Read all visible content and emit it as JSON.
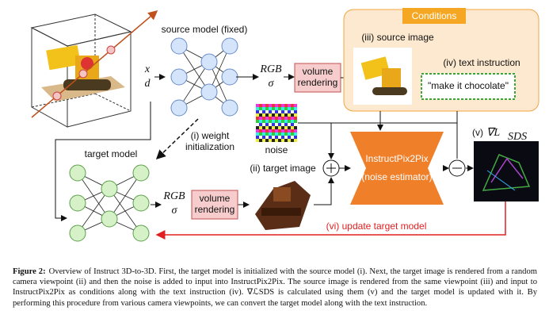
{
  "figure": {
    "source_model": "source model (fixed)",
    "input_x": "x",
    "input_d": "d",
    "rgb_top": "RGB",
    "sigma_top": "σ",
    "volume_rendering_top": [
      "volume",
      "rendering"
    ],
    "conditions": "Conditions",
    "source_image": "(iii) source image",
    "text_instruction": "(iv) text instruction",
    "instruction_text": "\"make it chocolate\"",
    "noise": "noise",
    "weight_init": [
      "(i) weight",
      "initialization"
    ],
    "target_model": "target model",
    "target_image": "(ii) target image",
    "pix2pix": "InstructPix2Pix",
    "pix2pix_sub": "(noise estimator)",
    "sds_prefix": "(v)",
    "sds_symbol": "∇L",
    "sds_sub": "SDS",
    "rgb_bottom": "RGB",
    "sigma_bottom": "σ",
    "volume_rendering_bottom": [
      "volume",
      "rendering"
    ],
    "update": "(vi) update target model"
  },
  "caption": {
    "label": "Figure 2:",
    "text": "Overview of Instruct 3D-to-3D. First, the target model is initialized with the source model (i). Next, the target image is rendered from a random camera viewpoint (ii) and then the noise is added to input into InstructPix2Pix. The source image is rendered from the same viewpoint (iii) and input to InstructPix2Pix as conditions along with the text instruction (iv). ∇ℒSDS is calculated using them (v) and the target model is updated with it. By performing this procedure from various camera viewpoints, we can convert the target model along with the text instruction."
  }
}
